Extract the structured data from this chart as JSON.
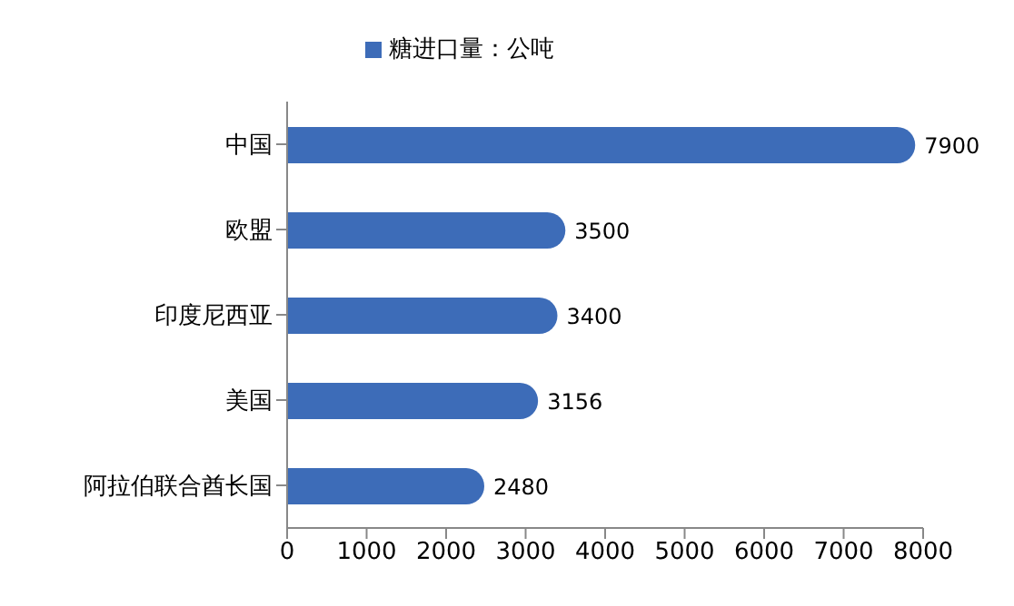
{
  "chart_data": {
    "type": "bar",
    "orientation": "horizontal",
    "categories": [
      "中国",
      "欧盟",
      "印度尼西亚",
      "美国",
      "阿拉伯联合酋长国"
    ],
    "series": [
      {
        "name": "糖进口量：公吨",
        "color": "#3d6cb8",
        "values": [
          7900,
          3500,
          3400,
          3156,
          2480
        ]
      }
    ],
    "xlim": [
      0,
      8000
    ],
    "xticks": [
      0,
      1000,
      2000,
      3000,
      4000,
      5000,
      6000,
      7000,
      8000
    ],
    "data_labels": true,
    "legend": "top",
    "grid": false
  }
}
